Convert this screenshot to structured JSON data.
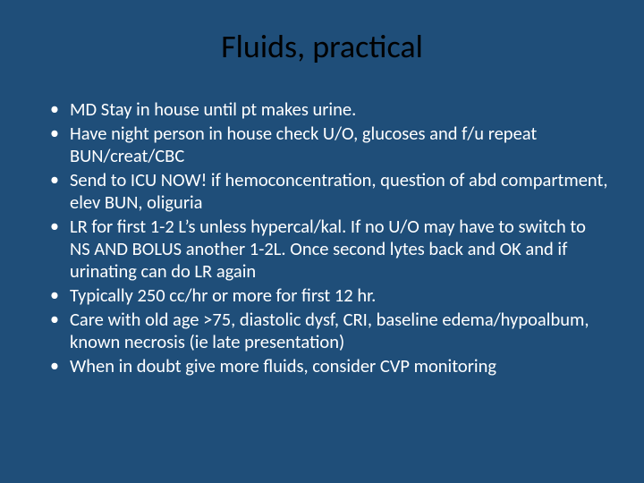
{
  "slide": {
    "background_color": "#1f4e79",
    "title": {
      "text": "Fluids, practical",
      "color": "#000000",
      "fontsize": 36,
      "align": "center"
    },
    "bullets": {
      "color": "#ffffff",
      "fontsize": 20.5,
      "items": [
        "MD Stay in house until pt makes urine.",
        "Have night person in house check U/O, glucoses and f/u repeat BUN/creat/CBC",
        "Send to ICU NOW! if hemoconcentration, question of abd compartment, elev BUN, oliguria",
        "LR for first 1-2 L’s unless hypercal/kal.  If no U/O may have to switch to NS AND BOLUS another 1-2L. Once second lytes back and OK and if urinating can do LR again",
        "Typically 250 cc/hr or more for first 12 hr.",
        "Care with old age >75, diastolic dysf, CRI, baseline edema/hypoalbum, known necrosis (ie late presentation)",
        "When in doubt give more fluids, consider CVP monitoring"
      ]
    }
  }
}
